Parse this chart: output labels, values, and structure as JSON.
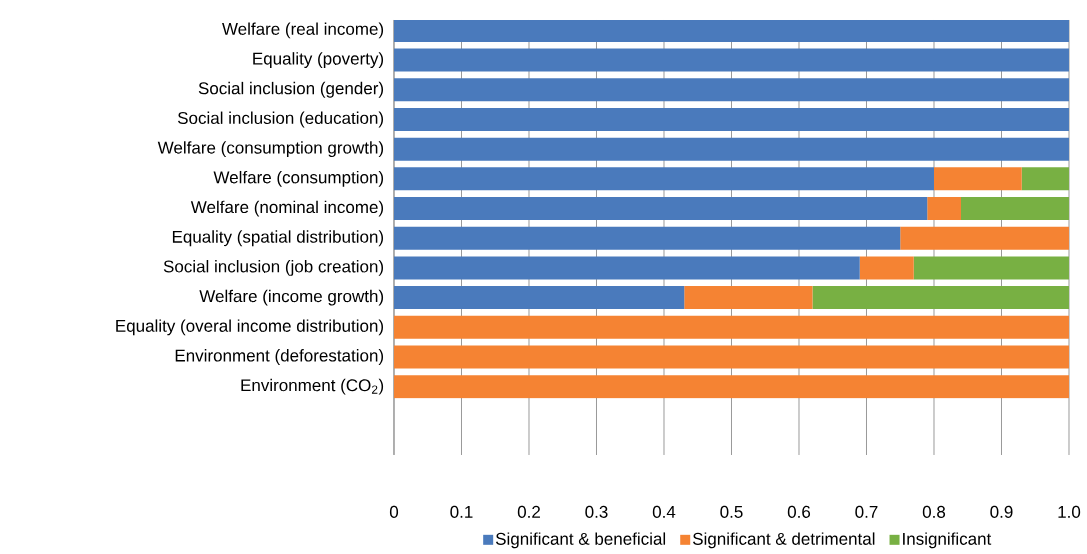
{
  "chart_data": {
    "type": "bar",
    "orientation": "horizontal",
    "stacked": true,
    "categories": [
      "Welfare (real income)",
      "Equality (poverty)",
      "Social inclusion (gender)",
      "Social inclusion (education)",
      "Welfare (consumption growth)",
      "Welfare (consumption)",
      "Welfare (nominal income)",
      "Equality (spatial distribution)",
      "Social inclusion (job creation)",
      "Welfare (income growth)",
      "Equality (overal income distribution)",
      "Environment (deforestation)",
      "Environment (CO$_{2}$)"
    ],
    "series": [
      {
        "name": "Significant & beneficial",
        "color": "#4a7abc",
        "values": [
          1,
          1,
          1,
          1,
          1,
          0.8,
          0.79,
          0.75,
          0.69,
          0.43,
          0,
          0,
          0
        ]
      },
      {
        "name": "Significant & detrimental",
        "color": "#f58333",
        "values": [
          0,
          0,
          0,
          0,
          0,
          0.13,
          0.05,
          0.25,
          0.08,
          0.19,
          1,
          1,
          1
        ]
      },
      {
        "name": "Insignificant",
        "color": "#78b043",
        "values": [
          0,
          0,
          0,
          0,
          0,
          0.07,
          0.16,
          0,
          0.23,
          0.38,
          0,
          0,
          0
        ]
      }
    ],
    "xlim": [
      0,
      1
    ],
    "xticks": [
      0,
      0.1,
      0.2,
      0.3,
      0.4,
      0.5,
      0.6,
      0.7,
      0.8,
      0.9,
      {
        "value": 1,
        "label": "1.0"
      }
    ],
    "grid": "x",
    "legend": "bottom"
  }
}
